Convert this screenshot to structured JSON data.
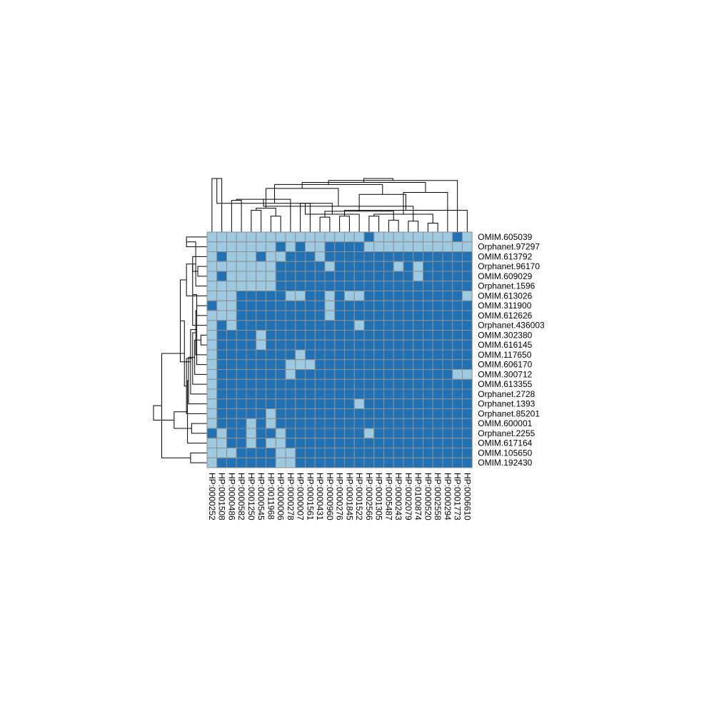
{
  "chart_data": {
    "type": "heatmap",
    "rows": [
      "OMIM.605039",
      "Orphanet.97297",
      "OMIM.613792",
      "Orphanet.96170",
      "OMIM.609029",
      "Orphanet.1596",
      "OMIM.613026",
      "OMIM.311900",
      "OMIM.612626",
      "Orphanet.436003",
      "OMIM.302380",
      "OMIM.616145",
      "OMIM.117650",
      "OMIM.606170",
      "OMIM.300712",
      "OMIM.613355",
      "Orphanet.2728",
      "Orphanet.1393",
      "Orphanet.85201",
      "OMIM.600001",
      "Orphanet.2255",
      "OMIM.617164",
      "OMIM.105650",
      "OMIM.192430"
    ],
    "columns": [
      "HP:0000252",
      "HP:0001508",
      "HP:0000486",
      "HP:0000582",
      "HP:0001250",
      "HP:0000545",
      "HP:0011968",
      "HP:0000006",
      "HP:0000278",
      "HP:0000007",
      "HP:0001561",
      "HP:0000431",
      "HP:0000960",
      "HP:0000276",
      "HP:0001845",
      "HP:0001522",
      "HP:0002566",
      "HP:0001305",
      "HP:0005487",
      "HP:0000243",
      "HP:0002079",
      "HP:0100874",
      "HP:0000520",
      "HP:0002558",
      "HP:0000294",
      "HP:0001773",
      "HP:0006610"
    ],
    "values": [
      [
        0,
        0,
        0,
        0,
        0,
        0,
        0,
        0,
        0,
        0,
        0,
        0,
        0,
        0,
        0,
        0,
        1,
        0,
        0,
        0,
        0,
        0,
        0,
        0,
        0,
        1,
        0
      ],
      [
        0,
        0,
        0,
        0,
        0,
        0,
        0,
        1,
        0,
        1,
        0,
        0,
        1,
        1,
        1,
        1,
        0,
        0,
        0,
        0,
        0,
        0,
        0,
        0,
        0,
        0,
        0
      ],
      [
        0,
        1,
        0,
        0,
        0,
        1,
        0,
        0,
        1,
        1,
        1,
        0,
        1,
        1,
        1,
        1,
        1,
        1,
        1,
        1,
        1,
        1,
        1,
        1,
        1,
        1,
        1
      ],
      [
        0,
        0,
        0,
        0,
        0,
        0,
        0,
        1,
        1,
        1,
        1,
        1,
        0,
        1,
        1,
        1,
        1,
        1,
        1,
        0,
        1,
        0,
        1,
        1,
        1,
        1,
        1
      ],
      [
        0,
        1,
        0,
        0,
        0,
        0,
        0,
        1,
        1,
        1,
        1,
        1,
        1,
        1,
        1,
        1,
        1,
        1,
        1,
        1,
        1,
        0,
        1,
        1,
        1,
        1,
        1
      ],
      [
        0,
        0,
        0,
        0,
        0,
        0,
        0,
        1,
        1,
        1,
        1,
        1,
        1,
        1,
        1,
        1,
        1,
        1,
        1,
        1,
        1,
        1,
        1,
        1,
        1,
        1,
        1
      ],
      [
        0,
        0,
        0,
        1,
        1,
        1,
        1,
        1,
        0,
        0,
        1,
        1,
        0,
        1,
        0,
        0,
        1,
        1,
        1,
        1,
        1,
        1,
        1,
        1,
        1,
        1,
        0
      ],
      [
        1,
        0,
        0,
        1,
        1,
        1,
        1,
        1,
        1,
        1,
        1,
        1,
        0,
        1,
        1,
        1,
        1,
        1,
        1,
        1,
        1,
        1,
        1,
        1,
        1,
        1,
        1
      ],
      [
        0,
        0,
        0,
        1,
        1,
        1,
        1,
        1,
        1,
        1,
        1,
        1,
        0,
        1,
        1,
        1,
        1,
        1,
        1,
        1,
        1,
        1,
        1,
        1,
        1,
        1,
        1
      ],
      [
        0,
        1,
        0,
        1,
        1,
        1,
        1,
        1,
        1,
        1,
        1,
        1,
        1,
        1,
        1,
        0,
        1,
        1,
        1,
        1,
        1,
        1,
        1,
        1,
        1,
        1,
        1
      ],
      [
        0,
        1,
        1,
        1,
        1,
        0,
        1,
        1,
        1,
        1,
        1,
        1,
        1,
        1,
        1,
        1,
        1,
        1,
        1,
        1,
        1,
        1,
        1,
        1,
        1,
        1,
        1
      ],
      [
        0,
        1,
        1,
        1,
        1,
        0,
        1,
        1,
        1,
        1,
        1,
        1,
        1,
        1,
        1,
        1,
        1,
        1,
        1,
        1,
        1,
        1,
        1,
        1,
        1,
        1,
        1
      ],
      [
        0,
        1,
        1,
        1,
        1,
        1,
        1,
        1,
        1,
        0,
        1,
        1,
        1,
        1,
        1,
        1,
        1,
        1,
        1,
        1,
        1,
        1,
        1,
        1,
        1,
        1,
        1
      ],
      [
        0,
        1,
        1,
        1,
        1,
        1,
        1,
        1,
        0,
        0,
        0,
        1,
        1,
        1,
        1,
        1,
        1,
        1,
        1,
        1,
        1,
        1,
        1,
        1,
        1,
        1,
        1
      ],
      [
        0,
        1,
        1,
        1,
        1,
        1,
        1,
        1,
        0,
        1,
        1,
        1,
        1,
        1,
        1,
        1,
        1,
        1,
        1,
        1,
        1,
        1,
        1,
        1,
        1,
        0,
        0
      ],
      [
        0,
        1,
        1,
        1,
        1,
        1,
        1,
        1,
        1,
        1,
        1,
        1,
        1,
        1,
        1,
        1,
        1,
        1,
        1,
        1,
        1,
        1,
        1,
        1,
        1,
        1,
        1
      ],
      [
        0,
        1,
        1,
        1,
        1,
        1,
        1,
        1,
        1,
        1,
        1,
        1,
        1,
        1,
        1,
        1,
        1,
        1,
        1,
        1,
        1,
        1,
        1,
        1,
        1,
        1,
        1
      ],
      [
        0,
        1,
        1,
        1,
        1,
        1,
        1,
        1,
        1,
        1,
        1,
        1,
        1,
        1,
        1,
        0,
        1,
        1,
        1,
        1,
        1,
        1,
        1,
        1,
        1,
        1,
        1
      ],
      [
        0,
        1,
        1,
        1,
        1,
        1,
        0,
        1,
        1,
        1,
        1,
        1,
        1,
        1,
        1,
        1,
        1,
        1,
        1,
        1,
        1,
        1,
        1,
        1,
        1,
        1,
        1
      ],
      [
        0,
        1,
        1,
        1,
        0,
        1,
        0,
        1,
        1,
        1,
        1,
        1,
        1,
        1,
        1,
        1,
        1,
        1,
        1,
        1,
        1,
        1,
        1,
        1,
        1,
        1,
        1
      ],
      [
        1,
        0,
        1,
        1,
        0,
        1,
        1,
        0,
        1,
        1,
        1,
        1,
        1,
        1,
        1,
        1,
        0,
        1,
        1,
        1,
        1,
        1,
        1,
        1,
        1,
        1,
        1
      ],
      [
        0,
        0,
        1,
        1,
        0,
        1,
        0,
        0,
        1,
        1,
        1,
        1,
        1,
        1,
        1,
        1,
        1,
        1,
        1,
        1,
        1,
        1,
        1,
        1,
        1,
        1,
        1
      ],
      [
        0,
        0,
        0,
        1,
        1,
        1,
        1,
        0,
        0,
        1,
        1,
        1,
        1,
        1,
        1,
        1,
        1,
        1,
        1,
        1,
        1,
        1,
        1,
        1,
        1,
        1,
        1
      ],
      [
        0,
        1,
        1,
        1,
        1,
        1,
        1,
        0,
        0,
        1,
        1,
        1,
        1,
        1,
        1,
        1,
        1,
        1,
        1,
        1,
        1,
        1,
        1,
        1,
        1,
        1,
        1
      ]
    ],
    "color_scale": {
      "0": "#9ecae1",
      "1": "#2171b5"
    },
    "grid_color": "#8f8f8f",
    "legend": "none",
    "row_dendrogram": {
      "merges": [
        [
          0,
          1,
          1.0
        ],
        [
          3,
          4,
          0.45
        ],
        [
          24,
          5,
          0.55
        ],
        [
          2,
          25,
          0.7
        ],
        [
          26,
          6,
          1.0
        ],
        [
          7,
          8,
          0.5
        ],
        [
          27,
          9,
          0.7
        ],
        [
          10,
          11,
          0.3
        ],
        [
          29,
          12,
          0.55
        ],
        [
          30,
          13,
          0.5
        ],
        [
          31,
          14,
          0.6
        ],
        [
          32,
          15,
          0.7
        ],
        [
          33,
          16,
          0.8
        ],
        [
          34,
          17,
          0.9
        ],
        [
          35,
          18,
          1.0
        ],
        [
          28,
          36,
          1.3
        ],
        [
          19,
          20,
          0.75
        ],
        [
          37,
          21,
          0.95
        ],
        [
          22,
          23,
          0.8
        ],
        [
          38,
          39,
          1.1
        ],
        [
          40,
          41,
          1.6
        ],
        [
          42,
          43,
          2.2
        ],
        [
          44,
          45,
          2.6
        ]
      ]
    },
    "col_dendrogram": {
      "merges": [
        [
          0,
          1,
          5.4
        ],
        [
          2,
          3,
          3.2
        ],
        [
          4,
          5,
          2.2
        ],
        [
          6,
          7,
          1.6
        ],
        [
          9,
          10,
          2.9
        ],
        [
          11,
          12,
          1.5
        ],
        [
          13,
          14,
          1.6
        ],
        [
          16,
          17,
          1.6
        ],
        [
          18,
          19,
          1.2
        ],
        [
          20,
          21,
          1.1
        ],
        [
          22,
          23,
          0.9
        ],
        [
          8,
          28,
          3.3
        ],
        [
          31,
          15,
          1.8
        ],
        [
          35,
          32,
          2.1
        ],
        [
          33,
          26,
          2.2
        ],
        [
          37,
          34,
          1.8
        ],
        [
          30,
          29,
          2.4
        ],
        [
          36,
          38,
          2.6
        ],
        [
          27,
          39,
          2.9
        ],
        [
          40,
          41,
          3.8
        ],
        [
          42,
          24,
          4.0
        ],
        [
          43,
          44,
          4.4
        ],
        [
          45,
          46,
          4.8
        ],
        [
          47,
          48,
          5.0
        ],
        [
          49,
          25,
          5.2
        ],
        [
          50,
          51,
          5.4
        ]
      ]
    }
  }
}
